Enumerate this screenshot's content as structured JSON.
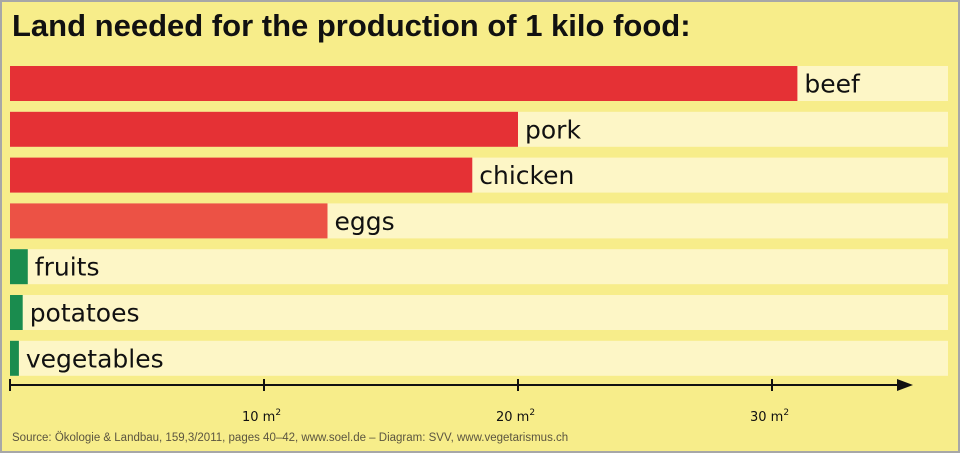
{
  "chart_data": {
    "type": "bar",
    "orientation": "horizontal",
    "title": "Land needed for the production of 1 kilo food:",
    "categories": [
      "beef",
      "pork",
      "chicken",
      "eggs",
      "fruits",
      "potatoes",
      "vegetables"
    ],
    "values": [
      31,
      20,
      18.2,
      12.5,
      0.7,
      0.5,
      0.35
    ],
    "bar_colors": [
      "#e53135",
      "#e53135",
      "#e53135",
      "#ec5245",
      "#1a8c4e",
      "#1a8c4e",
      "#1a8c4e"
    ],
    "track_color": "#fdf6c6",
    "xlim": [
      0,
      35
    ],
    "x_ticks": [
      10,
      20,
      30
    ],
    "tick_labels": [
      "10 m",
      "20 m",
      "30 m"
    ],
    "tick_unit_superscript": "2",
    "grid": false,
    "legend": "none"
  },
  "source": "Source: Ökologie & Landbau, 159,3/2011, pages 40–42, www.soel.de  –  Diagram: SVV, www.vegetarismus.ch",
  "colors": {
    "background": "#f7ed8a",
    "border": "#a7a7a7",
    "axis": "#111111"
  }
}
